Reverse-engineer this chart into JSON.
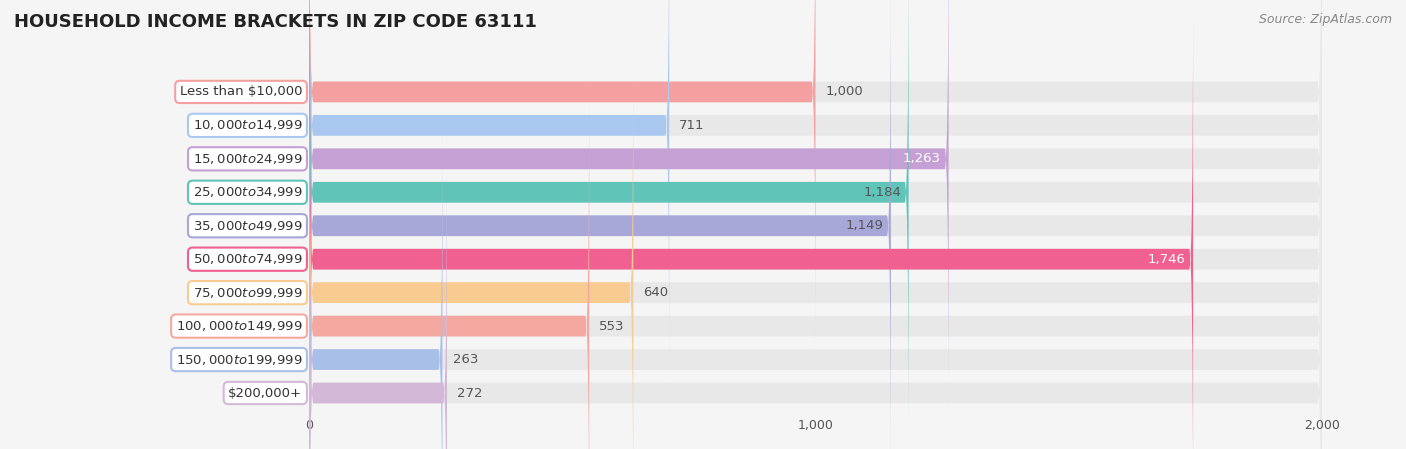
{
  "title": "HOUSEHOLD INCOME BRACKETS IN ZIP CODE 63111",
  "source": "Source: ZipAtlas.com",
  "categories": [
    "Less than $10,000",
    "$10,000 to $14,999",
    "$15,000 to $24,999",
    "$25,000 to $34,999",
    "$35,000 to $49,999",
    "$50,000 to $74,999",
    "$75,000 to $99,999",
    "$100,000 to $149,999",
    "$150,000 to $199,999",
    "$200,000+"
  ],
  "values": [
    1000,
    711,
    1263,
    1184,
    1149,
    1746,
    640,
    553,
    263,
    272
  ],
  "bar_colors": [
    "#F4A0A0",
    "#A8C8F0",
    "#C4A0D4",
    "#60C4B8",
    "#A8A8D8",
    "#F06090",
    "#F8CC90",
    "#F4A8A0",
    "#A8C0E8",
    "#D4B8D8"
  ],
  "label_colors": [
    "#555555",
    "#555555",
    "#ffffff",
    "#555555",
    "#555555",
    "#ffffff",
    "#555555",
    "#555555",
    "#555555",
    "#555555"
  ],
  "value_inside": [
    false,
    false,
    true,
    true,
    true,
    true,
    false,
    false,
    false,
    false
  ],
  "xlim_data": [
    0,
    2000
  ],
  "xticks": [
    0,
    1000,
    2000
  ],
  "background_color": "#f5f5f5",
  "bar_bg_color": "#e8e8e8",
  "title_fontsize": 13,
  "label_fontsize": 9.5,
  "value_fontsize": 9.5,
  "source_fontsize": 9
}
